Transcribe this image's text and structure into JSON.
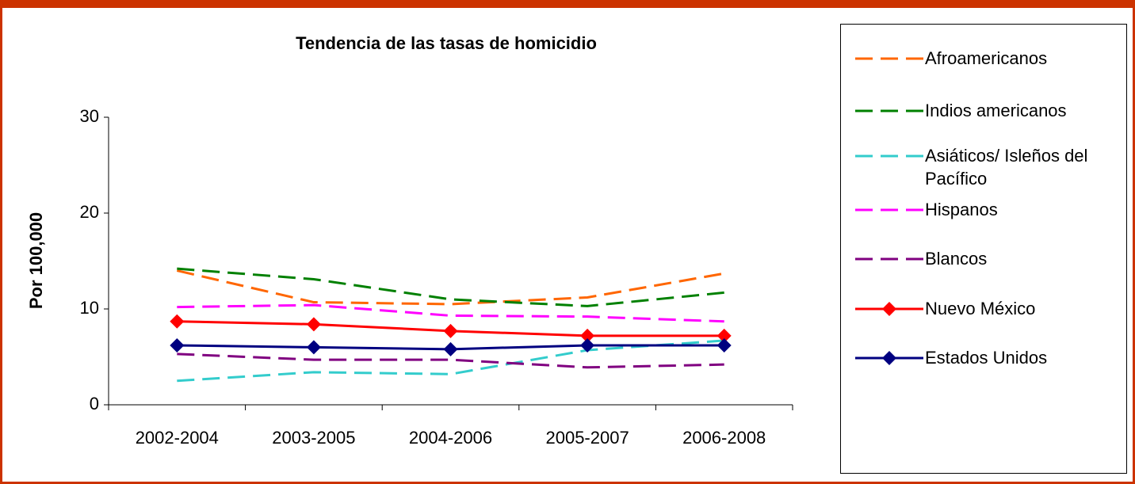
{
  "chart_data": {
    "type": "line",
    "title": "Tendencia de las tasas de homicidio",
    "y_label": "Por 100,000",
    "categories": [
      "2002-2004",
      "2003-2005",
      "2004-2006",
      "2005-2007",
      "2006-2008"
    ],
    "ylim": [
      0,
      30
    ],
    "yticks": [
      0,
      10,
      20,
      30
    ],
    "grid": false,
    "legend": "right",
    "series": [
      {
        "name": "Afroamericanos",
        "color": "#ff6600",
        "dash": true,
        "values": [
          14.0,
          10.7,
          10.5,
          11.2,
          13.7
        ]
      },
      {
        "name": "Indios americanos",
        "color": "#008000",
        "dash": true,
        "values": [
          14.2,
          13.1,
          11.0,
          10.3,
          11.7
        ]
      },
      {
        "name": "Asiáticos/ Isleños del Pacífico",
        "color": "#33cccc",
        "dash": true,
        "values": [
          2.5,
          3.4,
          3.2,
          5.7,
          6.7
        ]
      },
      {
        "name": "Hispanos",
        "color": "#ff00ff",
        "dash": true,
        "values": [
          10.2,
          10.4,
          9.3,
          9.2,
          8.7
        ]
      },
      {
        "name": "Blancos",
        "color": "#800080",
        "dash": true,
        "values": [
          5.3,
          4.7,
          4.7,
          3.9,
          4.2
        ]
      },
      {
        "name": "Nuevo México",
        "color": "#ff0000",
        "marker": "diamond",
        "values": [
          8.7,
          8.4,
          7.7,
          7.2,
          7.2
        ]
      },
      {
        "name": "Estados Unidos",
        "color": "#000080",
        "marker": "diamond",
        "values": [
          6.2,
          6.0,
          5.8,
          6.2,
          6.2
        ]
      }
    ]
  }
}
